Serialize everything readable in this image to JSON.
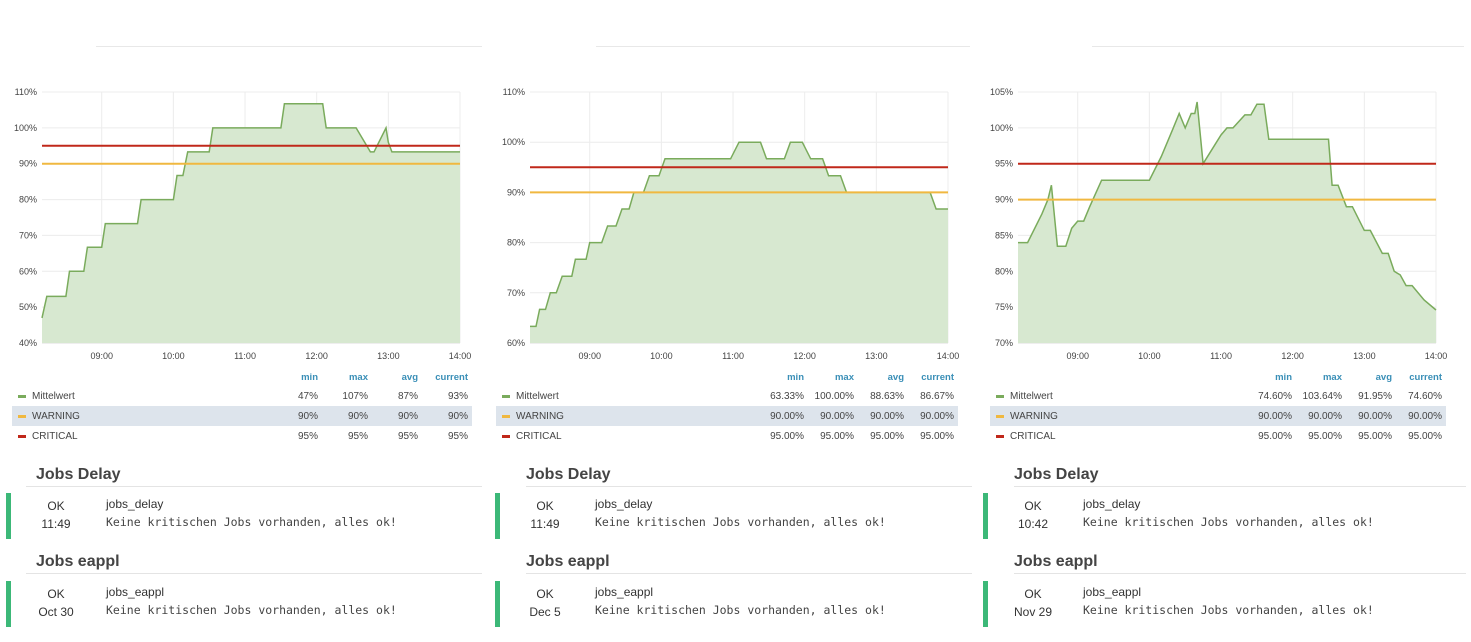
{
  "legend_headers": {
    "min": "min",
    "max": "max",
    "avg": "avg",
    "current": "current"
  },
  "colors": {
    "mittelwert": "#7aab5c",
    "fill": "#d7e8d0",
    "warning": "#f0b840",
    "critical": "#c0281a",
    "ok_bar": "#3cb878"
  },
  "panels": [
    {
      "legend": [
        {
          "name": "Mittelwert",
          "min": "47%",
          "max": "107%",
          "avg": "87%",
          "current": "93%"
        },
        {
          "name": "WARNING",
          "min": "90%",
          "max": "90%",
          "avg": "90%",
          "current": "90%"
        },
        {
          "name": "CRITICAL",
          "min": "95%",
          "max": "95%",
          "avg": "95%",
          "current": "95%"
        }
      ],
      "services": [
        {
          "title": "Jobs Delay",
          "state": "OK",
          "time": "11:49",
          "name": "jobs_delay",
          "message": "Keine kritischen Jobs vorhanden, alles ok!"
        },
        {
          "title": "Jobs eappl",
          "state": "OK",
          "time": "Oct 30",
          "name": "jobs_eappl",
          "message": "Keine kritischen Jobs vorhanden, alles ok!"
        }
      ]
    },
    {
      "legend": [
        {
          "name": "Mittelwert",
          "min": "63.33%",
          "max": "100.00%",
          "avg": "88.63%",
          "current": "86.67%"
        },
        {
          "name": "WARNING",
          "min": "90.00%",
          "max": "90.00%",
          "avg": "90.00%",
          "current": "90.00%"
        },
        {
          "name": "CRITICAL",
          "min": "95.00%",
          "max": "95.00%",
          "avg": "95.00%",
          "current": "95.00%"
        }
      ],
      "services": [
        {
          "title": "Jobs Delay",
          "state": "OK",
          "time": "11:49",
          "name": "jobs_delay",
          "message": "Keine kritischen Jobs vorhanden, alles ok!"
        },
        {
          "title": "Jobs eappl",
          "state": "OK",
          "time": "Dec 5",
          "name": "jobs_eappl",
          "message": "Keine kritischen Jobs vorhanden, alles ok!"
        }
      ]
    },
    {
      "legend": [
        {
          "name": "Mittelwert",
          "min": "74.60%",
          "max": "103.64%",
          "avg": "91.95%",
          "current": "74.60%"
        },
        {
          "name": "WARNING",
          "min": "90.00%",
          "max": "90.00%",
          "avg": "90.00%",
          "current": "90.00%"
        },
        {
          "name": "CRITICAL",
          "min": "95.00%",
          "max": "95.00%",
          "avg": "95.00%",
          "current": "95.00%"
        }
      ],
      "services": [
        {
          "title": "Jobs Delay",
          "state": "OK",
          "time": "10:42",
          "name": "jobs_delay",
          "message": "Keine kritischen Jobs vorhanden, alles ok!"
        },
        {
          "title": "Jobs eappl",
          "state": "OK",
          "time": "Nov 29",
          "name": "jobs_eappl",
          "message": "Keine kritischen Jobs vorhanden, alles ok!"
        }
      ]
    }
  ],
  "chart_data": [
    {
      "type": "area",
      "x_start": "08:10",
      "x_end": "14:00",
      "xticks": [
        "09:00",
        "10:00",
        "11:00",
        "12:00",
        "13:00",
        "14:00"
      ],
      "yticks": [
        "40%",
        "50%",
        "60%",
        "70%",
        "80%",
        "90%",
        "100%",
        "110%"
      ],
      "ylim": [
        40,
        110
      ],
      "grid": true,
      "series": [
        {
          "name": "Mittelwert",
          "x": [
            "08:10",
            "08:14",
            "08:30",
            "08:33",
            "08:45",
            "08:48",
            "09:00",
            "09:03",
            "09:30",
            "09:33",
            "10:00",
            "10:03",
            "10:08",
            "10:12",
            "10:30",
            "10:33",
            "10:50",
            "10:53",
            "11:30",
            "11:33",
            "12:05",
            "12:08",
            "12:30",
            "12:33",
            "12:45",
            "12:48",
            "12:58",
            "13:00",
            "13:03",
            "13:10",
            "14:00"
          ],
          "y": [
            47,
            53,
            53,
            60,
            60,
            66.7,
            66.7,
            73.3,
            73.3,
            80,
            80,
            86.7,
            86.7,
            93.3,
            93.3,
            100,
            100,
            100,
            100,
            106.7,
            106.7,
            100,
            100,
            100,
            93.3,
            93.3,
            100,
            96,
            93.3,
            93.3,
            93.3
          ]
        },
        {
          "name": "WARNING",
          "x": [
            "08:10",
            "14:00"
          ],
          "y": [
            90,
            90
          ]
        },
        {
          "name": "CRITICAL",
          "x": [
            "08:10",
            "14:00"
          ],
          "y": [
            95,
            95
          ]
        }
      ]
    },
    {
      "type": "area",
      "x_start": "08:10",
      "x_end": "14:00",
      "xticks": [
        "09:00",
        "10:00",
        "11:00",
        "12:00",
        "13:00",
        "14:00"
      ],
      "yticks": [
        "60%",
        "70%",
        "80%",
        "90%",
        "100%",
        "110%"
      ],
      "ylim": [
        60,
        110
      ],
      "grid": true,
      "series": [
        {
          "name": "Mittelwert",
          "x": [
            "08:10",
            "08:15",
            "08:18",
            "08:23",
            "08:27",
            "08:32",
            "08:37",
            "08:45",
            "08:48",
            "08:57",
            "09:00",
            "09:10",
            "09:15",
            "09:22",
            "09:27",
            "09:33",
            "09:37",
            "09:45",
            "09:50",
            "09:58",
            "10:03",
            "10:20",
            "10:27",
            "10:58",
            "11:05",
            "11:23",
            "11:28",
            "11:43",
            "11:48",
            "11:58",
            "12:05",
            "12:15",
            "12:20",
            "12:30",
            "12:35",
            "12:45",
            "13:45",
            "13:50",
            "14:00"
          ],
          "y": [
            63.3,
            63.3,
            66.7,
            66.7,
            70,
            70,
            73.3,
            73.3,
            76.7,
            76.7,
            80,
            80,
            83.3,
            83.3,
            86.7,
            86.7,
            90,
            90,
            93.3,
            93.3,
            96.7,
            96.7,
            96.7,
            96.7,
            100,
            100,
            96.7,
            96.7,
            100,
            100,
            96.7,
            96.7,
            93.3,
            93.3,
            90,
            90,
            90,
            86.7,
            86.7
          ]
        },
        {
          "name": "WARNING",
          "x": [
            "08:10",
            "14:00"
          ],
          "y": [
            90,
            90
          ]
        },
        {
          "name": "CRITICAL",
          "x": [
            "08:10",
            "14:00"
          ],
          "y": [
            95,
            95
          ]
        }
      ]
    },
    {
      "type": "area",
      "x_start": "08:10",
      "x_end": "14:00",
      "xticks": [
        "09:00",
        "10:00",
        "11:00",
        "12:00",
        "13:00",
        "14:00"
      ],
      "yticks": [
        "70%",
        "75%",
        "80%",
        "85%",
        "90%",
        "95%",
        "100%",
        "105%"
      ],
      "ylim": [
        70,
        105
      ],
      "grid": true,
      "series": [
        {
          "name": "Mittelwert",
          "x": [
            "08:10",
            "08:18",
            "08:30",
            "08:35",
            "08:38",
            "08:43",
            "08:50",
            "08:55",
            "09:00",
            "09:05",
            "09:10",
            "09:20",
            "09:30",
            "10:00",
            "10:10",
            "10:20",
            "10:25",
            "10:30",
            "10:35",
            "10:38",
            "10:40",
            "10:45",
            "11:00",
            "11:05",
            "11:10",
            "11:20",
            "11:25",
            "11:30",
            "11:33",
            "11:36",
            "11:40",
            "12:00",
            "12:08",
            "12:30",
            "12:33",
            "12:38",
            "12:45",
            "12:50",
            "13:00",
            "13:05",
            "13:15",
            "13:20",
            "13:25",
            "13:30",
            "13:35",
            "13:40",
            "13:50",
            "14:00"
          ],
          "y": [
            84,
            84,
            88,
            90,
            92,
            83.5,
            83.5,
            86,
            87,
            87,
            89,
            92.7,
            92.7,
            92.7,
            96,
            100,
            102,
            100,
            102,
            102,
            103.6,
            95,
            99,
            100,
            100,
            101.8,
            101.8,
            103.3,
            103.3,
            103.3,
            98.4,
            98.4,
            98.4,
            98.4,
            92,
            92,
            89,
            89,
            85.7,
            85.7,
            82.5,
            82.5,
            80,
            79.5,
            78,
            78,
            76,
            74.6
          ]
        },
        {
          "name": "WARNING",
          "x": [
            "08:10",
            "14:00"
          ],
          "y": [
            90,
            90
          ]
        },
        {
          "name": "CRITICAL",
          "x": [
            "08:10",
            "14:00"
          ],
          "y": [
            95,
            95
          ]
        }
      ]
    }
  ]
}
